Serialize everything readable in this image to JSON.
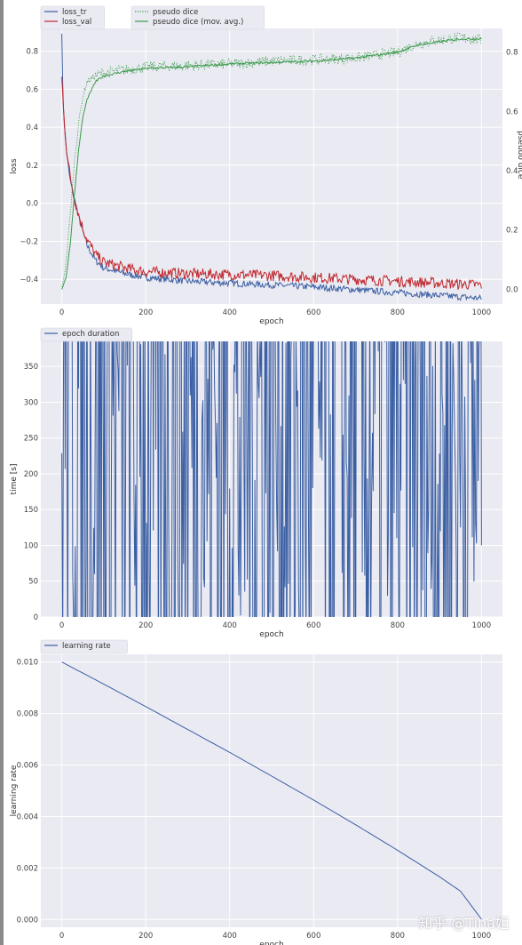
{
  "colors": {
    "background": "#eaeaf2",
    "grid": "#ffffff",
    "blue": "#3b5fa3",
    "red": "#c0282d",
    "green": "#3a9a4a"
  },
  "chart_data": [
    {
      "type": "line",
      "xlabel": "epoch",
      "ylabel": "loss",
      "y2label": "pseudo dice",
      "xlim": [
        -50,
        1050
      ],
      "ylim": [
        -0.53,
        0.92
      ],
      "y2lim": [
        -0.05,
        0.88
      ],
      "xticks": [
        "0",
        "200",
        "400",
        "600",
        "800",
        "1000"
      ],
      "yticks": [
        "−0.4",
        "−0.2",
        "0.0",
        "0.2",
        "0.4",
        "0.6",
        "0.8"
      ],
      "y2ticks": [
        "0.0",
        "0.2",
        "0.4",
        "0.6",
        "0.8"
      ],
      "grid": true,
      "legend": [
        "top-left",
        "top-center"
      ],
      "series": [
        {
          "name": "loss_tr",
          "axis": "left",
          "x": [
            0,
            2,
            5,
            10,
            15,
            20,
            30,
            40,
            50,
            60,
            80,
            100,
            150,
            200,
            300,
            400,
            500,
            600,
            700,
            800,
            900,
            1000
          ],
          "values": [
            0.91,
            0.62,
            0.45,
            0.3,
            0.2,
            0.12,
            0.02,
            -0.07,
            -0.15,
            -0.22,
            -0.3,
            -0.34,
            -0.37,
            -0.39,
            -0.41,
            -0.42,
            -0.43,
            -0.44,
            -0.455,
            -0.47,
            -0.485,
            -0.5
          ]
        },
        {
          "name": "loss_val",
          "axis": "left",
          "x": [
            0,
            5,
            10,
            15,
            20,
            30,
            40,
            50,
            60,
            80,
            100,
            150,
            200,
            300,
            400,
            500,
            600,
            700,
            800,
            900,
            1000
          ],
          "values": [
            0.66,
            0.45,
            0.32,
            0.22,
            0.14,
            0.03,
            -0.06,
            -0.13,
            -0.19,
            -0.27,
            -0.31,
            -0.34,
            -0.36,
            -0.37,
            -0.375,
            -0.38,
            -0.39,
            -0.4,
            -0.41,
            -0.42,
            -0.43
          ]
        },
        {
          "name": "pseudo dice",
          "axis": "right",
          "x": [
            0,
            10,
            20,
            30,
            40,
            50,
            60,
            80,
            100,
            150,
            200,
            300,
            400,
            500,
            600,
            700,
            800,
            850,
            900,
            950,
            1000
          ],
          "values": [
            0.0,
            0.09,
            0.25,
            0.43,
            0.56,
            0.65,
            0.7,
            0.72,
            0.73,
            0.74,
            0.75,
            0.755,
            0.76,
            0.77,
            0.775,
            0.78,
            0.8,
            0.83,
            0.84,
            0.85,
            0.84
          ]
        },
        {
          "name": "pseudo dice (mov. avg.)",
          "axis": "right",
          "x": [
            0,
            10,
            20,
            30,
            40,
            50,
            60,
            80,
            100,
            150,
            200,
            300,
            400,
            500,
            600,
            700,
            800,
            850,
            900,
            950,
            1000
          ],
          "values": [
            0.0,
            0.04,
            0.15,
            0.32,
            0.47,
            0.58,
            0.64,
            0.7,
            0.72,
            0.735,
            0.745,
            0.75,
            0.76,
            0.765,
            0.77,
            0.78,
            0.8,
            0.825,
            0.835,
            0.845,
            0.845
          ]
        }
      ]
    },
    {
      "type": "line",
      "xlabel": "epoch",
      "ylabel": "time [s]",
      "xlim": [
        -50,
        1050
      ],
      "ylim": [
        0,
        385
      ],
      "xticks": [
        "0",
        "200",
        "400",
        "600",
        "800",
        "1000"
      ],
      "yticks": [
        "0",
        "50",
        "100",
        "150",
        "200",
        "250",
        "300",
        "350"
      ],
      "grid": true,
      "legend": "top-left",
      "series": [
        {
          "name": "epoch duration",
          "x": [
            0,
            1,
            2,
            4,
            8,
            15,
            20,
            25,
            28,
            30,
            32,
            35,
            40,
            50,
            60,
            80,
            100,
            150,
            200,
            240,
            245,
            250,
            255,
            260,
            265,
            270,
            273,
            275,
            278,
            280,
            285,
            290,
            300,
            350,
            400,
            500,
            600,
            700,
            800,
            830,
            840,
            850,
            870,
            900,
            950,
            960,
            965,
            968,
            970,
            975,
            980,
            1000
          ],
          "values": [
            100,
            250,
            340,
            360,
            362,
            368,
            372,
            372,
            368,
            345,
            320,
            300,
            285,
            278,
            275,
            272,
            271,
            270,
            269,
            268,
            275,
            295,
            312,
            322,
            330,
            340,
            345,
            335,
            300,
            285,
            280,
            276,
            272,
            268,
            266,
            265,
            265,
            263,
            263,
            265,
            264,
            255,
            250,
            249,
            248,
            255,
            270,
            288,
            276,
            258,
            252,
            251
          ]
        }
      ]
    },
    {
      "type": "line",
      "xlabel": "epoch",
      "ylabel": "learning rate",
      "xlim": [
        -50,
        1050
      ],
      "ylim": [
        -0.0003,
        0.0103
      ],
      "xticks": [
        "0",
        "200",
        "400",
        "600",
        "800",
        "1000"
      ],
      "yticks": [
        "0.000",
        "0.002",
        "0.004",
        "0.006",
        "0.008",
        "0.010"
      ],
      "grid": true,
      "legend": "top-left",
      "series": [
        {
          "name": "learning rate",
          "x": [
            0,
            100,
            200,
            300,
            400,
            500,
            600,
            700,
            800,
            900,
            950,
            1000
          ],
          "values": [
            0.01,
            0.00914,
            0.00827,
            0.00738,
            0.00649,
            0.00557,
            0.00464,
            0.00368,
            0.00269,
            0.00166,
            0.0011,
            1e-05
          ]
        }
      ]
    }
  ],
  "watermark": "知乎 @Tina姐"
}
